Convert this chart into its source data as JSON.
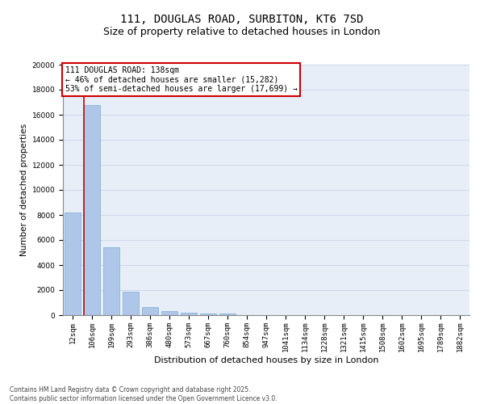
{
  "title": "111, DOUGLAS ROAD, SURBITON, KT6 7SD",
  "subtitle": "Size of property relative to detached houses in London",
  "xlabel": "Distribution of detached houses by size in London",
  "ylabel": "Number of detached properties",
  "categories": [
    "12sqm",
    "106sqm",
    "199sqm",
    "293sqm",
    "386sqm",
    "480sqm",
    "573sqm",
    "667sqm",
    "760sqm",
    "854sqm",
    "947sqm",
    "1041sqm",
    "1134sqm",
    "1228sqm",
    "1321sqm",
    "1415sqm",
    "1508sqm",
    "1602sqm",
    "1695sqm",
    "1789sqm",
    "1882sqm"
  ],
  "values": [
    8200,
    16800,
    5400,
    1850,
    650,
    350,
    200,
    150,
    100,
    0,
    0,
    0,
    0,
    0,
    0,
    0,
    0,
    0,
    0,
    0,
    0
  ],
  "bar_color": "#aec6e8",
  "bar_edge_color": "#7badd4",
  "vline_color": "#cc0000",
  "annotation_line1": "111 DOUGLAS ROAD: 138sqm",
  "annotation_line2": "← 46% of detached houses are smaller (15,282)",
  "annotation_line3": "53% of semi-detached houses are larger (17,699) →",
  "annotation_box_edgecolor": "#cc0000",
  "ylim": [
    0,
    20000
  ],
  "yticks": [
    0,
    2000,
    4000,
    6000,
    8000,
    10000,
    12000,
    14000,
    16000,
    18000,
    20000
  ],
  "grid_color": "#ccd8ea",
  "background_color": "#e8eef8",
  "footer_line1": "Contains HM Land Registry data © Crown copyright and database right 2025.",
  "footer_line2": "Contains public sector information licensed under the Open Government Licence v3.0.",
  "title_fontsize": 10,
  "subtitle_fontsize": 9,
  "tick_fontsize": 6.5,
  "ylabel_fontsize": 7.5,
  "xlabel_fontsize": 8,
  "annotation_fontsize": 7,
  "footer_fontsize": 5.5
}
